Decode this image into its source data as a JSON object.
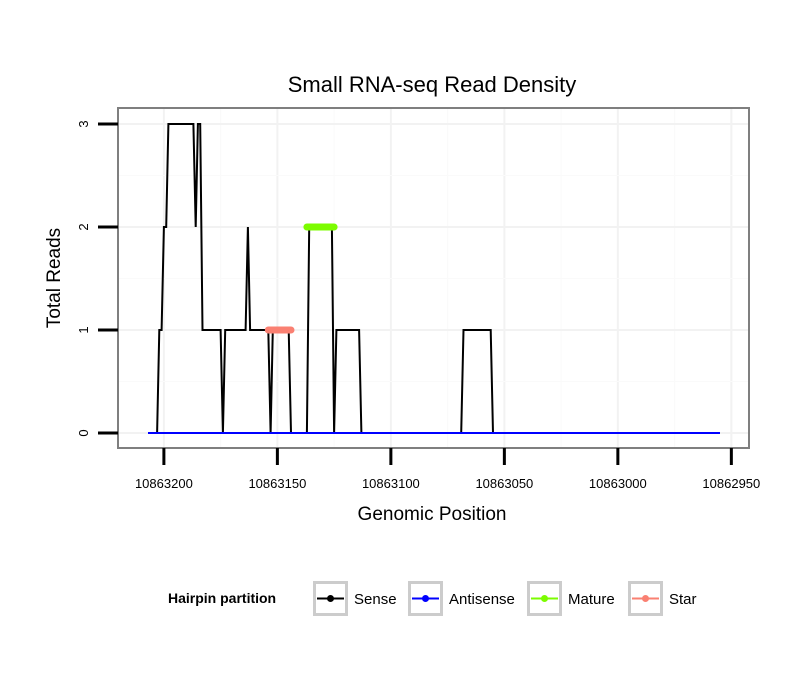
{
  "chart_data": {
    "type": "line",
    "title": "Small RNA-seq Read Density",
    "xlabel": "Genomic Position",
    "ylabel": "Total Reads",
    "xlim": [
      10863207,
      10862955
    ],
    "ylim": [
      0,
      3
    ],
    "x_reversed": true,
    "x_ticks": [
      10863200,
      10863150,
      10863100,
      10863050,
      10863000,
      10862950
    ],
    "x_tick_labels": [
      "10863200",
      "10863150",
      "10863100",
      "10863050",
      "10863000",
      "10862950"
    ],
    "y_ticks": [
      0,
      1,
      2,
      3
    ],
    "y_tick_labels": [
      "0",
      "1",
      "2",
      "3"
    ],
    "grid": true,
    "legend": {
      "title": "Hairpin partition",
      "position": "bottom",
      "entries": [
        {
          "name": "Sense",
          "color": "#000000"
        },
        {
          "name": "Antisense",
          "color": "#0000ff"
        },
        {
          "name": "Mature",
          "color": "#7cfc00"
        },
        {
          "name": "Star",
          "color": "#fa8072"
        }
      ]
    },
    "series": [
      {
        "name": "Sense",
        "color": "#000000",
        "points": [
          [
            10863207,
            0
          ],
          [
            10863205,
            0
          ],
          [
            10863203,
            0
          ],
          [
            10863202,
            1
          ],
          [
            10863201,
            1
          ],
          [
            10863200,
            2
          ],
          [
            10863199,
            2
          ],
          [
            10863198,
            3
          ],
          [
            10863197,
            3
          ],
          [
            10863187,
            3
          ],
          [
            10863186,
            2
          ],
          [
            10863185,
            3
          ],
          [
            10863184,
            3
          ],
          [
            10863183,
            1
          ],
          [
            10863175,
            1
          ],
          [
            10863174,
            0
          ],
          [
            10863173,
            1
          ],
          [
            10863164,
            1
          ],
          [
            10863163,
            2
          ],
          [
            10863162,
            1
          ],
          [
            10863154,
            1
          ],
          [
            10863153,
            0
          ],
          [
            10863152,
            1
          ],
          [
            10863145,
            1
          ],
          [
            10863144,
            0
          ],
          [
            10863137,
            0
          ],
          [
            10863136,
            2
          ],
          [
            10863126,
            2
          ],
          [
            10863125,
            0
          ],
          [
            10863124,
            1
          ],
          [
            10863114,
            1
          ],
          [
            10863113,
            0
          ],
          [
            10863069,
            0
          ],
          [
            10863068,
            1
          ],
          [
            10863056,
            1
          ],
          [
            10863055,
            0
          ],
          [
            10862955,
            0
          ]
        ]
      },
      {
        "name": "Antisense",
        "color": "#0000ff",
        "points": [
          [
            10863207,
            0
          ],
          [
            10862955,
            0
          ]
        ]
      },
      {
        "name": "Mature",
        "color": "#7cfc00",
        "points": [
          [
            10863137,
            2
          ],
          [
            10863125,
            2
          ]
        ]
      },
      {
        "name": "Star",
        "color": "#fa8072",
        "points": [
          [
            10863154,
            1
          ],
          [
            10863144,
            1
          ]
        ]
      }
    ]
  }
}
